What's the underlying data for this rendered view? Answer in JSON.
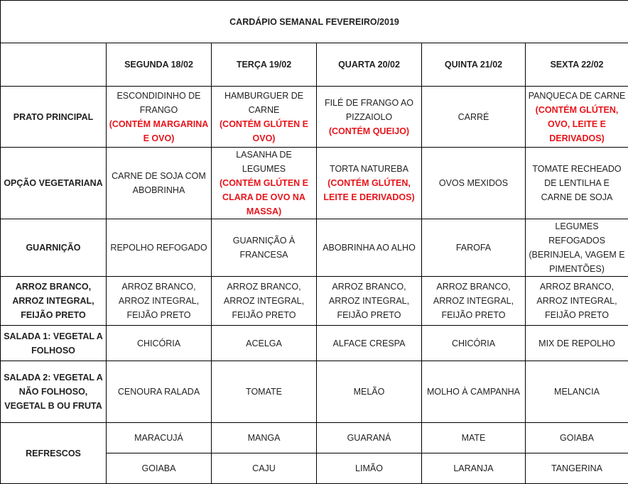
{
  "title": "CARDÁPIO SEMANAL FEVEREIRO/2019",
  "days": [
    "SEGUNDA 18/02",
    "TERÇA 19/02",
    "QUARTA 20/02",
    "QUINTA 21/02",
    "SEXTA 22/02"
  ],
  "colors": {
    "allergen": "#e8141b",
    "border": "#000000"
  },
  "rows": [
    {
      "label": "PRATO PRINCIPAL",
      "cells": [
        {
          "text": "ESCONDIDINHO DE FRANGO",
          "allergen": "(CONTÉM MARGARINA E OVO)"
        },
        {
          "text": "HAMBURGUER DE CARNE",
          "allergen": "(CONTÉM GLÚTEN E OVO)"
        },
        {
          "text": "FILÉ DE FRANGO AO PIZZAIOLO",
          "allergen": "(CONTÉM QUEIJO)"
        },
        {
          "text": "CARRÉ"
        },
        {
          "text": "PANQUECA DE CARNE",
          "allergen": "(CONTÉM GLÚTEN, OVO, LEITE E DERIVADOS)"
        }
      ]
    },
    {
      "label": "OPÇÃO VEGETARIANA",
      "cells": [
        {
          "text": "CARNE DE SOJA COM ABOBRINHA"
        },
        {
          "text": "LASANHA DE LEGUMES",
          "allergen": "(CONTÉM GLÚTEN E CLARA DE OVO NA MASSA)"
        },
        {
          "text": "TORTA NATUREBA",
          "allergen": "(CONTÉM GLÚTEN, LEITE E DERIVADOS)"
        },
        {
          "text": "OVOS MEXIDOS"
        },
        {
          "text": "TOMATE RECHEADO DE LENTILHA E CARNE DE SOJA"
        }
      ]
    },
    {
      "label": "GUARNIÇÃO",
      "cells": [
        {
          "text": "REPOLHO REFOGADO"
        },
        {
          "text": "GUARNIÇÃO À FRANCESA"
        },
        {
          "text": "ABOBRINHA AO ALHO"
        },
        {
          "text": "FAROFA"
        },
        {
          "text": "LEGUMES REFOGADOS (BERINJELA, VAGEM E PIMENTÕES)"
        }
      ]
    },
    {
      "label": "ARROZ BRANCO, ARROZ INTEGRAL, FEIJÃO PRETO",
      "cells": [
        {
          "text": "ARROZ BRANCO, ARROZ INTEGRAL, FEIJÃO PRETO"
        },
        {
          "text": "ARROZ BRANCO, ARROZ INTEGRAL, FEIJÃO PRETO"
        },
        {
          "text": "ARROZ BRANCO, ARROZ INTEGRAL, FEIJÃO PRETO"
        },
        {
          "text": "ARROZ BRANCO, ARROZ INTEGRAL, FEIJÃO PRETO"
        },
        {
          "text": "ARROZ BRANCO, ARROZ INTEGRAL, FEIJÃO PRETO"
        }
      ]
    },
    {
      "label": "SALADA 1: VEGETAL A FOLHOSO",
      "cells": [
        {
          "text": "CHICÓRIA"
        },
        {
          "text": "ACELGA"
        },
        {
          "text": "ALFACE CRESPA"
        },
        {
          "text": "CHICÓRIA"
        },
        {
          "text": "MIX DE REPOLHO"
        }
      ]
    },
    {
      "label": "SALADA 2: VEGETAL A NÃO FOLHOSO, VEGETAL B OU FRUTA",
      "cells": [
        {
          "text": "CENOURA RALADA"
        },
        {
          "text": "TOMATE"
        },
        {
          "text": "MELÃO"
        },
        {
          "text": "MOLHO À CAMPANHA"
        },
        {
          "text": "MELANCIA"
        }
      ]
    }
  ],
  "refrescos": {
    "label": "REFRESCOS",
    "first": [
      "MARACUJÁ",
      "MANGA",
      "GUARANÁ",
      "MATE",
      "GOIABA"
    ],
    "second": [
      "GOIABA",
      "CAJU",
      "LIMÃO",
      "LARANJA",
      "TANGERINA"
    ]
  }
}
